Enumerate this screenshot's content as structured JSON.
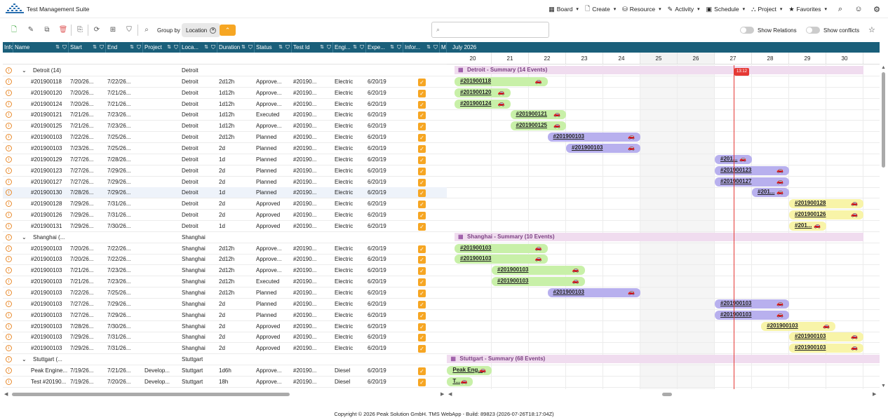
{
  "app": {
    "title": "Test Management Suite"
  },
  "nav": [
    {
      "label": "Board",
      "icon": "board-icon",
      "glyph": "▦"
    },
    {
      "label": "Create",
      "icon": "document-icon",
      "glyph": "🗋"
    },
    {
      "label": "Resource",
      "icon": "database-icon",
      "glyph": "⛁"
    },
    {
      "label": "Activity",
      "icon": "pencil-icon",
      "glyph": "✎"
    },
    {
      "label": "Schedule",
      "icon": "calendar-icon",
      "glyph": "▣"
    },
    {
      "label": "Project",
      "icon": "hierarchy-icon",
      "glyph": "⛬"
    },
    {
      "label": "Favorites",
      "icon": "star-icon",
      "glyph": "★"
    }
  ],
  "toolbar": {
    "group_by_label": "Group by",
    "group_chip": "Location",
    "show_relations": "Show Relations",
    "show_conflicts": "Show conflicts",
    "search_placeholder": ""
  },
  "columns": [
    "Info",
    "Name",
    "Start",
    "End",
    "Project",
    "Loca...",
    "Duration",
    "Status",
    "Test Id",
    "Engi...",
    "Expe...",
    "Infor...",
    "Ma"
  ],
  "timeline": {
    "month": "July 2026",
    "days": [
      "20",
      "21",
      "22",
      "23",
      "24",
      "25",
      "26",
      "27",
      "28",
      "29",
      "30",
      "3"
    ],
    "today_badge": "13:12"
  },
  "rows": [
    {
      "type": "group",
      "name": "Detroit (14)",
      "loc": "Detroit"
    },
    {
      "type": "item",
      "name": "#201900118",
      "start": "7/20/26...",
      "end": "7/22/26...",
      "project": "",
      "loc": "Detroit",
      "dur": "2d12h",
      "status": "Approve...",
      "tid": "#20190...",
      "eng": "Electric",
      "exp": "6/20/19"
    },
    {
      "type": "item",
      "name": "#201900120",
      "start": "7/20/26...",
      "end": "7/21/26...",
      "project": "",
      "loc": "Detroit",
      "dur": "1d12h",
      "status": "Approve...",
      "tid": "#20190...",
      "eng": "Electric",
      "exp": "6/20/19"
    },
    {
      "type": "item",
      "name": "#201900124",
      "start": "7/20/26...",
      "end": "7/21/26...",
      "project": "",
      "loc": "Detroit",
      "dur": "1d12h",
      "status": "Approve...",
      "tid": "#20190...",
      "eng": "Electric",
      "exp": "6/20/19"
    },
    {
      "type": "item",
      "name": "#201900121",
      "start": "7/21/26...",
      "end": "7/23/26...",
      "project": "",
      "loc": "Detroit",
      "dur": "1d12h",
      "status": "Executed",
      "tid": "#20190...",
      "eng": "Electric",
      "exp": "6/20/19"
    },
    {
      "type": "item",
      "name": "#201900125",
      "start": "7/21/26...",
      "end": "7/23/26...",
      "project": "",
      "loc": "Detroit",
      "dur": "1d12h",
      "status": "Approve...",
      "tid": "#20190...",
      "eng": "Electric",
      "exp": "6/20/19"
    },
    {
      "type": "item",
      "name": "#201900103",
      "start": "7/22/26...",
      "end": "7/25/26...",
      "project": "",
      "loc": "Detroit",
      "dur": "2d12h",
      "status": "Planned",
      "tid": "#20190...",
      "eng": "Electric",
      "exp": "6/20/19"
    },
    {
      "type": "item",
      "name": "#201900103",
      "start": "7/23/26...",
      "end": "7/25/26...",
      "project": "",
      "loc": "Detroit",
      "dur": "2d",
      "status": "Planned",
      "tid": "#20190...",
      "eng": "Electric",
      "exp": "6/20/19"
    },
    {
      "type": "item",
      "name": "#201900129",
      "start": "7/27/26...",
      "end": "7/28/26...",
      "project": "",
      "loc": "Detroit",
      "dur": "1d",
      "status": "Planned",
      "tid": "#20190...",
      "eng": "Electric",
      "exp": "6/20/19"
    },
    {
      "type": "item",
      "name": "#201900123",
      "start": "7/27/26...",
      "end": "7/29/26...",
      "project": "",
      "loc": "Detroit",
      "dur": "2d",
      "status": "Planned",
      "tid": "#20190...",
      "eng": "Electric",
      "exp": "6/20/19"
    },
    {
      "type": "item",
      "name": "#201900127",
      "start": "7/27/26...",
      "end": "7/29/26...",
      "project": "",
      "loc": "Detroit",
      "dur": "2d",
      "status": "Planned",
      "tid": "#20190...",
      "eng": "Electric",
      "exp": "6/20/19"
    },
    {
      "type": "item",
      "name": "#201900130",
      "start": "7/28/26...",
      "end": "7/29/26...",
      "project": "",
      "loc": "Detroit",
      "dur": "1d",
      "status": "Planned",
      "tid": "#20190...",
      "eng": "Electric",
      "exp": "6/20/19",
      "selected": true
    },
    {
      "type": "item",
      "name": "#201900128",
      "start": "7/29/26...",
      "end": "7/31/26...",
      "project": "",
      "loc": "Detroit",
      "dur": "2d",
      "status": "Approved",
      "tid": "#20190...",
      "eng": "Electric",
      "exp": "6/20/19"
    },
    {
      "type": "item",
      "name": "#201900126",
      "start": "7/29/26...",
      "end": "7/31/26...",
      "project": "",
      "loc": "Detroit",
      "dur": "2d",
      "status": "Approved",
      "tid": "#20190...",
      "eng": "Electric",
      "exp": "6/20/19"
    },
    {
      "type": "item",
      "name": "#201900131",
      "start": "7/29/26...",
      "end": "7/30/26...",
      "project": "",
      "loc": "Detroit",
      "dur": "1d",
      "status": "Approved",
      "tid": "#20190...",
      "eng": "Electric",
      "exp": "6/20/19"
    },
    {
      "type": "group",
      "name": "Shanghai (...",
      "loc": "Shanghai"
    },
    {
      "type": "item",
      "name": "#201900103",
      "start": "7/20/26...",
      "end": "7/22/26...",
      "project": "",
      "loc": "Shanghai",
      "dur": "2d12h",
      "status": "Approve...",
      "tid": "#20190...",
      "eng": "Electric",
      "exp": "6/20/19"
    },
    {
      "type": "item",
      "name": "#201900103",
      "start": "7/20/26...",
      "end": "7/22/26...",
      "project": "",
      "loc": "Shanghai",
      "dur": "2d12h",
      "status": "Approve...",
      "tid": "#20190...",
      "eng": "Electric",
      "exp": "6/20/19"
    },
    {
      "type": "item",
      "name": "#201900103",
      "start": "7/21/26...",
      "end": "7/23/26...",
      "project": "",
      "loc": "Shanghai",
      "dur": "2d12h",
      "status": "Approve...",
      "tid": "#20190...",
      "eng": "Electric",
      "exp": "6/20/19"
    },
    {
      "type": "item",
      "name": "#201900103",
      "start": "7/21/26...",
      "end": "7/23/26...",
      "project": "",
      "loc": "Shanghai",
      "dur": "2d12h",
      "status": "Executed",
      "tid": "#20190...",
      "eng": "Electric",
      "exp": "6/20/19"
    },
    {
      "type": "item",
      "name": "#201900103",
      "start": "7/22/26...",
      "end": "7/25/26...",
      "project": "",
      "loc": "Shanghai",
      "dur": "2d12h",
      "status": "Planned",
      "tid": "#20190...",
      "eng": "Electric",
      "exp": "6/20/19"
    },
    {
      "type": "item",
      "name": "#201900103",
      "start": "7/27/26...",
      "end": "7/29/26...",
      "project": "",
      "loc": "Shanghai",
      "dur": "2d",
      "status": "Planned",
      "tid": "#20190...",
      "eng": "Electric",
      "exp": "6/20/19"
    },
    {
      "type": "item",
      "name": "#201900103",
      "start": "7/27/26...",
      "end": "7/29/26...",
      "project": "",
      "loc": "Shanghai",
      "dur": "2d",
      "status": "Planned",
      "tid": "#20190...",
      "eng": "Electric",
      "exp": "6/20/19"
    },
    {
      "type": "item",
      "name": "#201900103",
      "start": "7/28/26...",
      "end": "7/30/26...",
      "project": "",
      "loc": "Shanghai",
      "dur": "2d",
      "status": "Approved",
      "tid": "#20190...",
      "eng": "Electric",
      "exp": "6/20/19"
    },
    {
      "type": "item",
      "name": "#201900103",
      "start": "7/29/26...",
      "end": "7/31/26...",
      "project": "",
      "loc": "Shanghai",
      "dur": "2d",
      "status": "Approved",
      "tid": "#20190...",
      "eng": "Electric",
      "exp": "6/20/19"
    },
    {
      "type": "item",
      "name": "#201900103",
      "start": "7/29/26...",
      "end": "7/31/26...",
      "project": "",
      "loc": "Shanghai",
      "dur": "2d",
      "status": "Approved",
      "tid": "#20190...",
      "eng": "Electric",
      "exp": "6/20/19"
    },
    {
      "type": "group",
      "name": "Stuttgart (...",
      "loc": "Stuttgart"
    },
    {
      "type": "item",
      "name": "Peak Engine...",
      "start": "7/19/26...",
      "end": "7/21/26...",
      "project": "Develop...",
      "loc": "Stuttgart",
      "dur": "1d6h",
      "status": "Approve...",
      "tid": "#20190...",
      "eng": "Diesel",
      "exp": "6/20/19"
    },
    {
      "type": "item",
      "name": "Test #20190...",
      "start": "7/19/26...",
      "end": "7/20/26...",
      "project": "Develop...",
      "loc": "Stuttgart",
      "dur": "18h",
      "status": "Approve...",
      "tid": "#20190...",
      "eng": "Diesel",
      "exp": "6/20/19"
    }
  ],
  "gantt": [
    {
      "summary": "Detroit - Summary (14 Events)",
      "from": 0.0,
      "to": 11.0
    },
    {
      "bar": "#201900118",
      "color": "green",
      "from": 0.0,
      "to": 2.5
    },
    {
      "bar": "#201900120",
      "color": "green",
      "from": 0.0,
      "to": 1.5
    },
    {
      "bar": "#201900124",
      "color": "green",
      "from": 0.0,
      "to": 1.5
    },
    {
      "bar": "#201900121",
      "color": "green",
      "from": 1.5,
      "to": 3.0
    },
    {
      "bar": "#201900125",
      "color": "green",
      "from": 1.5,
      "to": 3.0
    },
    {
      "bar": "#201900103",
      "color": "purple",
      "from": 2.5,
      "to": 5.0
    },
    {
      "bar": "#201900103",
      "color": "purple",
      "from": 3.0,
      "to": 5.0
    },
    {
      "bar": "#201...",
      "color": "purple",
      "from": 7.0,
      "to": 8.0
    },
    {
      "bar": "#201900123",
      "color": "purple",
      "from": 7.0,
      "to": 9.0
    },
    {
      "bar": "#201900127",
      "color": "purple",
      "from": 7.0,
      "to": 9.0
    },
    {
      "bar": "#201...",
      "color": "purple",
      "from": 8.0,
      "to": 9.0
    },
    {
      "bar": "#201900128",
      "color": "yellow",
      "from": 9.0,
      "to": 11.0
    },
    {
      "bar": "#201900126",
      "color": "yellow",
      "from": 9.0,
      "to": 11.0
    },
    {
      "bar": "#201...",
      "color": "yellow",
      "from": 9.0,
      "to": 10.0
    },
    {
      "summary": "Shanghai - Summary (10 Events)",
      "from": 0.0,
      "to": 11.0
    },
    {
      "bar": "#201900103",
      "color": "green",
      "from": 0.0,
      "to": 2.5
    },
    {
      "bar": "#201900103",
      "color": "green",
      "from": 0.0,
      "to": 2.5
    },
    {
      "bar": "#201900103",
      "color": "green",
      "from": 1.0,
      "to": 3.5
    },
    {
      "bar": "#201900103",
      "color": "green",
      "from": 1.0,
      "to": 3.5
    },
    {
      "bar": "#201900103",
      "color": "purple",
      "from": 2.5,
      "to": 5.0
    },
    {
      "bar": "#201900103",
      "color": "purple",
      "from": 7.0,
      "to": 9.0
    },
    {
      "bar": "#201900103",
      "color": "purple",
      "from": 7.0,
      "to": 9.0
    },
    {
      "bar": "#201900103",
      "color": "yellow",
      "from": 8.25,
      "to": 10.25
    },
    {
      "bar": "#201900103",
      "color": "yellow",
      "from": 9.0,
      "to": 11.0
    },
    {
      "bar": "#201900103",
      "color": "yellow",
      "from": 9.0,
      "to": 11.0
    },
    {
      "summary": "Stuttgart - Summary (68 Events)",
      "from": -0.2,
      "to": 11.5
    },
    {
      "bar": "Peak Eng...",
      "color": "green",
      "from": -0.2,
      "to": 1.0
    },
    {
      "bar": "T...",
      "color": "green",
      "from": -0.2,
      "to": 0.5
    }
  ],
  "colors": {
    "header": "#1a5f7a",
    "accent": "#f6a623",
    "today": "#e53935"
  },
  "footer": "Copyright © 2026 Peak Solution GmbH. TMS WebApp - Build: 89823 (2026-07-26T18:17:04Z)"
}
